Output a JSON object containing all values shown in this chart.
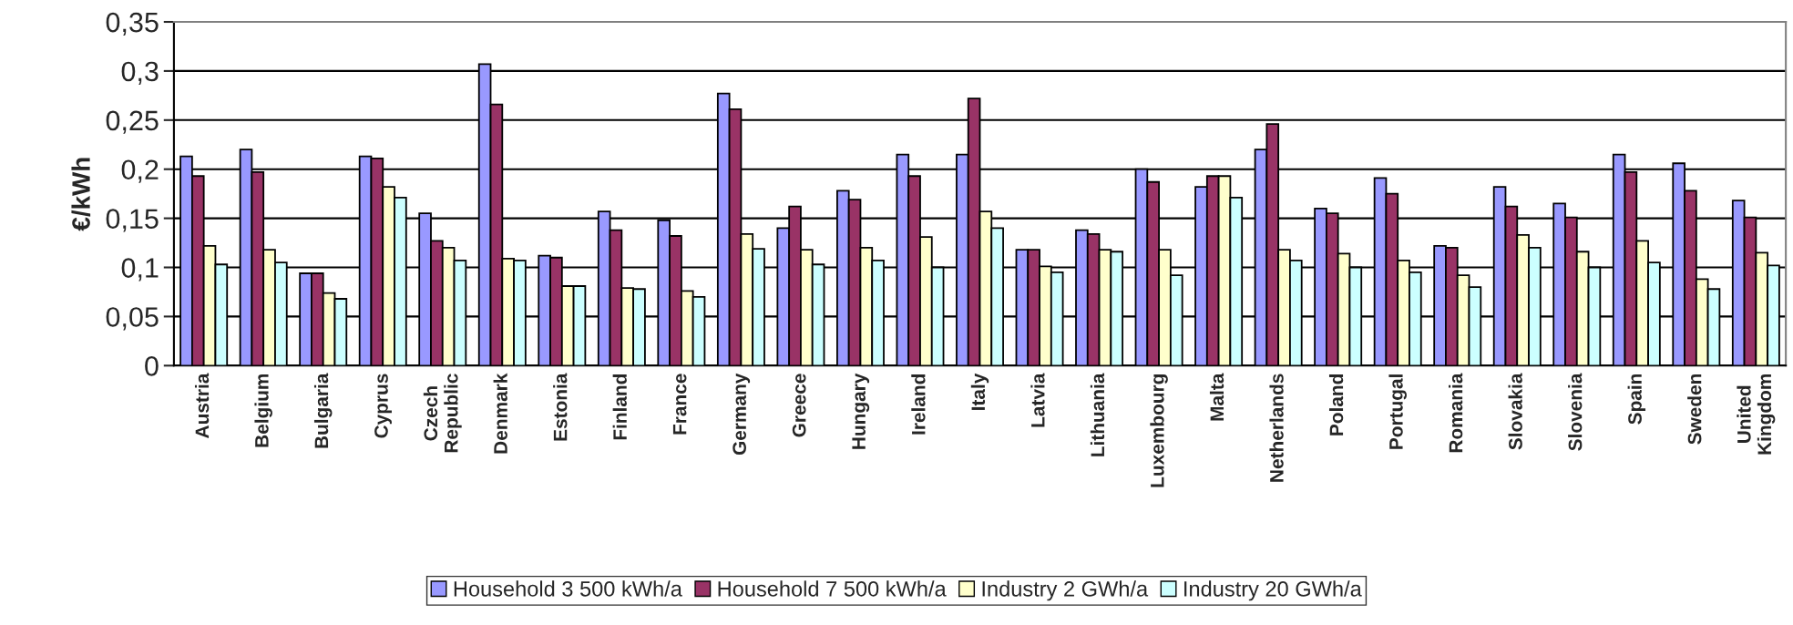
{
  "chart_data": {
    "type": "bar",
    "ylabel": "€/kWh",
    "categories": [
      "Austria",
      "Belgium",
      "Bulgaria",
      "Cyprus",
      "Czech Republic",
      "Denmark",
      "Estonia",
      "Finland",
      "France",
      "Germany",
      "Greece",
      "Hungary",
      "Ireland",
      "Italy",
      "Latvia",
      "Lithuania",
      "Luxembourg",
      "Malta",
      "Netherlands",
      "Poland",
      "Portugal",
      "Romania",
      "Slovakia",
      "Slovenia",
      "Spain",
      "Sweden",
      "United Kingdom"
    ],
    "series": [
      {
        "name": "Household 3 500 kWh/a",
        "color": "#9999ff",
        "values": [
          0.213,
          0.22,
          0.094,
          0.213,
          0.155,
          0.307,
          0.112,
          0.157,
          0.148,
          0.277,
          0.14,
          0.178,
          0.215,
          0.215,
          0.118,
          0.138,
          0.2,
          0.182,
          0.22,
          0.16,
          0.191,
          0.122,
          0.182,
          0.165,
          0.215,
          0.206,
          0.168
        ]
      },
      {
        "name": "Household 7 500 kWh/a",
        "color": "#993366",
        "values": [
          0.193,
          0.197,
          0.094,
          0.211,
          0.127,
          0.266,
          0.11,
          0.138,
          0.132,
          0.261,
          0.162,
          0.169,
          0.193,
          0.272,
          0.118,
          0.134,
          0.187,
          0.193,
          0.246,
          0.155,
          0.175,
          0.12,
          0.162,
          0.151,
          0.197,
          0.178,
          0.151
        ]
      },
      {
        "name": "Industry 2 GWh/a",
        "color": "#ffffcc",
        "values": [
          0.122,
          0.118,
          0.074,
          0.182,
          0.12,
          0.109,
          0.081,
          0.079,
          0.076,
          0.134,
          0.118,
          0.12,
          0.131,
          0.157,
          0.101,
          0.118,
          0.118,
          0.193,
          0.118,
          0.114,
          0.107,
          0.092,
          0.133,
          0.116,
          0.127,
          0.088,
          0.115
        ]
      },
      {
        "name": "Industry 20 GWh/a",
        "color": "#ccffff",
        "values": [
          0.103,
          0.105,
          0.068,
          0.171,
          0.107,
          0.107,
          0.081,
          0.078,
          0.07,
          0.119,
          0.103,
          0.107,
          0.1,
          0.14,
          0.095,
          0.116,
          0.092,
          0.171,
          0.107,
          0.1,
          0.095,
          0.08,
          0.12,
          0.1,
          0.105,
          0.078,
          0.102
        ]
      }
    ],
    "ylim": [
      0,
      0.35
    ],
    "yticks": [
      0,
      {
        "value": 0.05,
        "label": "0,05"
      },
      {
        "value": 0.1,
        "label": "0,1"
      },
      {
        "value": 0.15,
        "label": "0,15"
      },
      {
        "value": 0.2,
        "label": "0,2"
      },
      {
        "value": 0.25,
        "label": "0,25"
      },
      {
        "value": 0.3,
        "label": "0,3"
      },
      {
        "value": 0.35,
        "label": "0,35"
      }
    ],
    "grid": "y",
    "legend": "bottom"
  }
}
